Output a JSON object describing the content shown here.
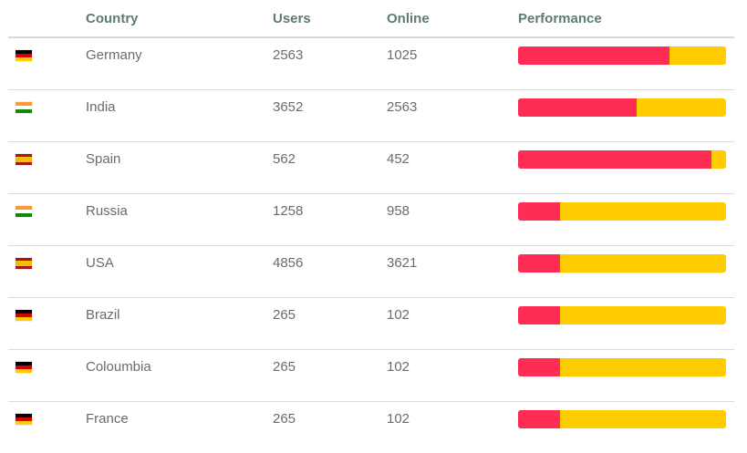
{
  "columns": {
    "country": "Country",
    "users": "Users",
    "online": "Online",
    "performance": "Performance"
  },
  "colors": {
    "bar_primary": "#ff2d55",
    "bar_secondary": "#ffcc00"
  },
  "rows": [
    {
      "flag": "germany-flag-icon",
      "country": "Germany",
      "users": "2563",
      "online": "1025",
      "performance": 0.73
    },
    {
      "flag": "india-flag-icon",
      "country": "India",
      "users": "3652",
      "online": "2563",
      "performance": 0.57
    },
    {
      "flag": "spain-flag-icon",
      "country": "Spain",
      "users": "562",
      "online": "452",
      "performance": 0.93
    },
    {
      "flag": "india-flag-icon",
      "country": "Russia",
      "users": "1258",
      "online": "958",
      "performance": 0.2
    },
    {
      "flag": "spain-flag-icon",
      "country": "USA",
      "users": "4856",
      "online": "3621",
      "performance": 0.2
    },
    {
      "flag": "germany-flag-icon",
      "country": "Brazil",
      "users": "265",
      "online": "102",
      "performance": 0.2
    },
    {
      "flag": "germany-flag-icon",
      "country": "Coloumbia",
      "users": "265",
      "online": "102",
      "performance": 0.2
    },
    {
      "flag": "germany-flag-icon",
      "country": "France",
      "users": "265",
      "online": "102",
      "performance": 0.2
    }
  ]
}
